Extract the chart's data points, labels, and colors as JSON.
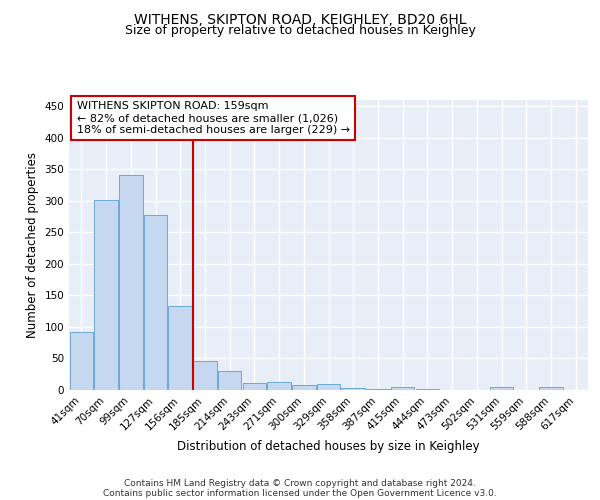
{
  "title": "WITHENS, SKIPTON ROAD, KEIGHLEY, BD20 6HL",
  "subtitle": "Size of property relative to detached houses in Keighley",
  "xlabel": "Distribution of detached houses by size in Keighley",
  "ylabel": "Number of detached properties",
  "categories": [
    "41sqm",
    "70sqm",
    "99sqm",
    "127sqm",
    "156sqm",
    "185sqm",
    "214sqm",
    "243sqm",
    "271sqm",
    "300sqm",
    "329sqm",
    "358sqm",
    "387sqm",
    "415sqm",
    "444sqm",
    "473sqm",
    "502sqm",
    "531sqm",
    "559sqm",
    "588sqm",
    "617sqm"
  ],
  "values": [
    92,
    302,
    341,
    278,
    133,
    46,
    30,
    11,
    12,
    8,
    10,
    3,
    2,
    4,
    1,
    0,
    0,
    4,
    0,
    4,
    0
  ],
  "bar_color": "#c5d8f0",
  "bar_edge_color": "#6aaad4",
  "vline_x_index": 4,
  "vline_color": "#cc0000",
  "annotation_text": "WITHENS SKIPTON ROAD: 159sqm\n← 82% of detached houses are smaller (1,026)\n18% of semi-detached houses are larger (229) →",
  "annotation_box_color": "#cc0000",
  "ylim": [
    0,
    460
  ],
  "yticks": [
    0,
    50,
    100,
    150,
    200,
    250,
    300,
    350,
    400,
    450
  ],
  "bg_color": "#e8eef8",
  "grid_color": "#ffffff",
  "fig_bg_color": "#ffffff",
  "footer_line1": "Contains HM Land Registry data © Crown copyright and database right 2024.",
  "footer_line2": "Contains public sector information licensed under the Open Government Licence v3.0.",
  "title_fontsize": 10,
  "subtitle_fontsize": 9,
  "xlabel_fontsize": 8.5,
  "ylabel_fontsize": 8.5,
  "tick_fontsize": 7.5,
  "annot_fontsize": 8
}
